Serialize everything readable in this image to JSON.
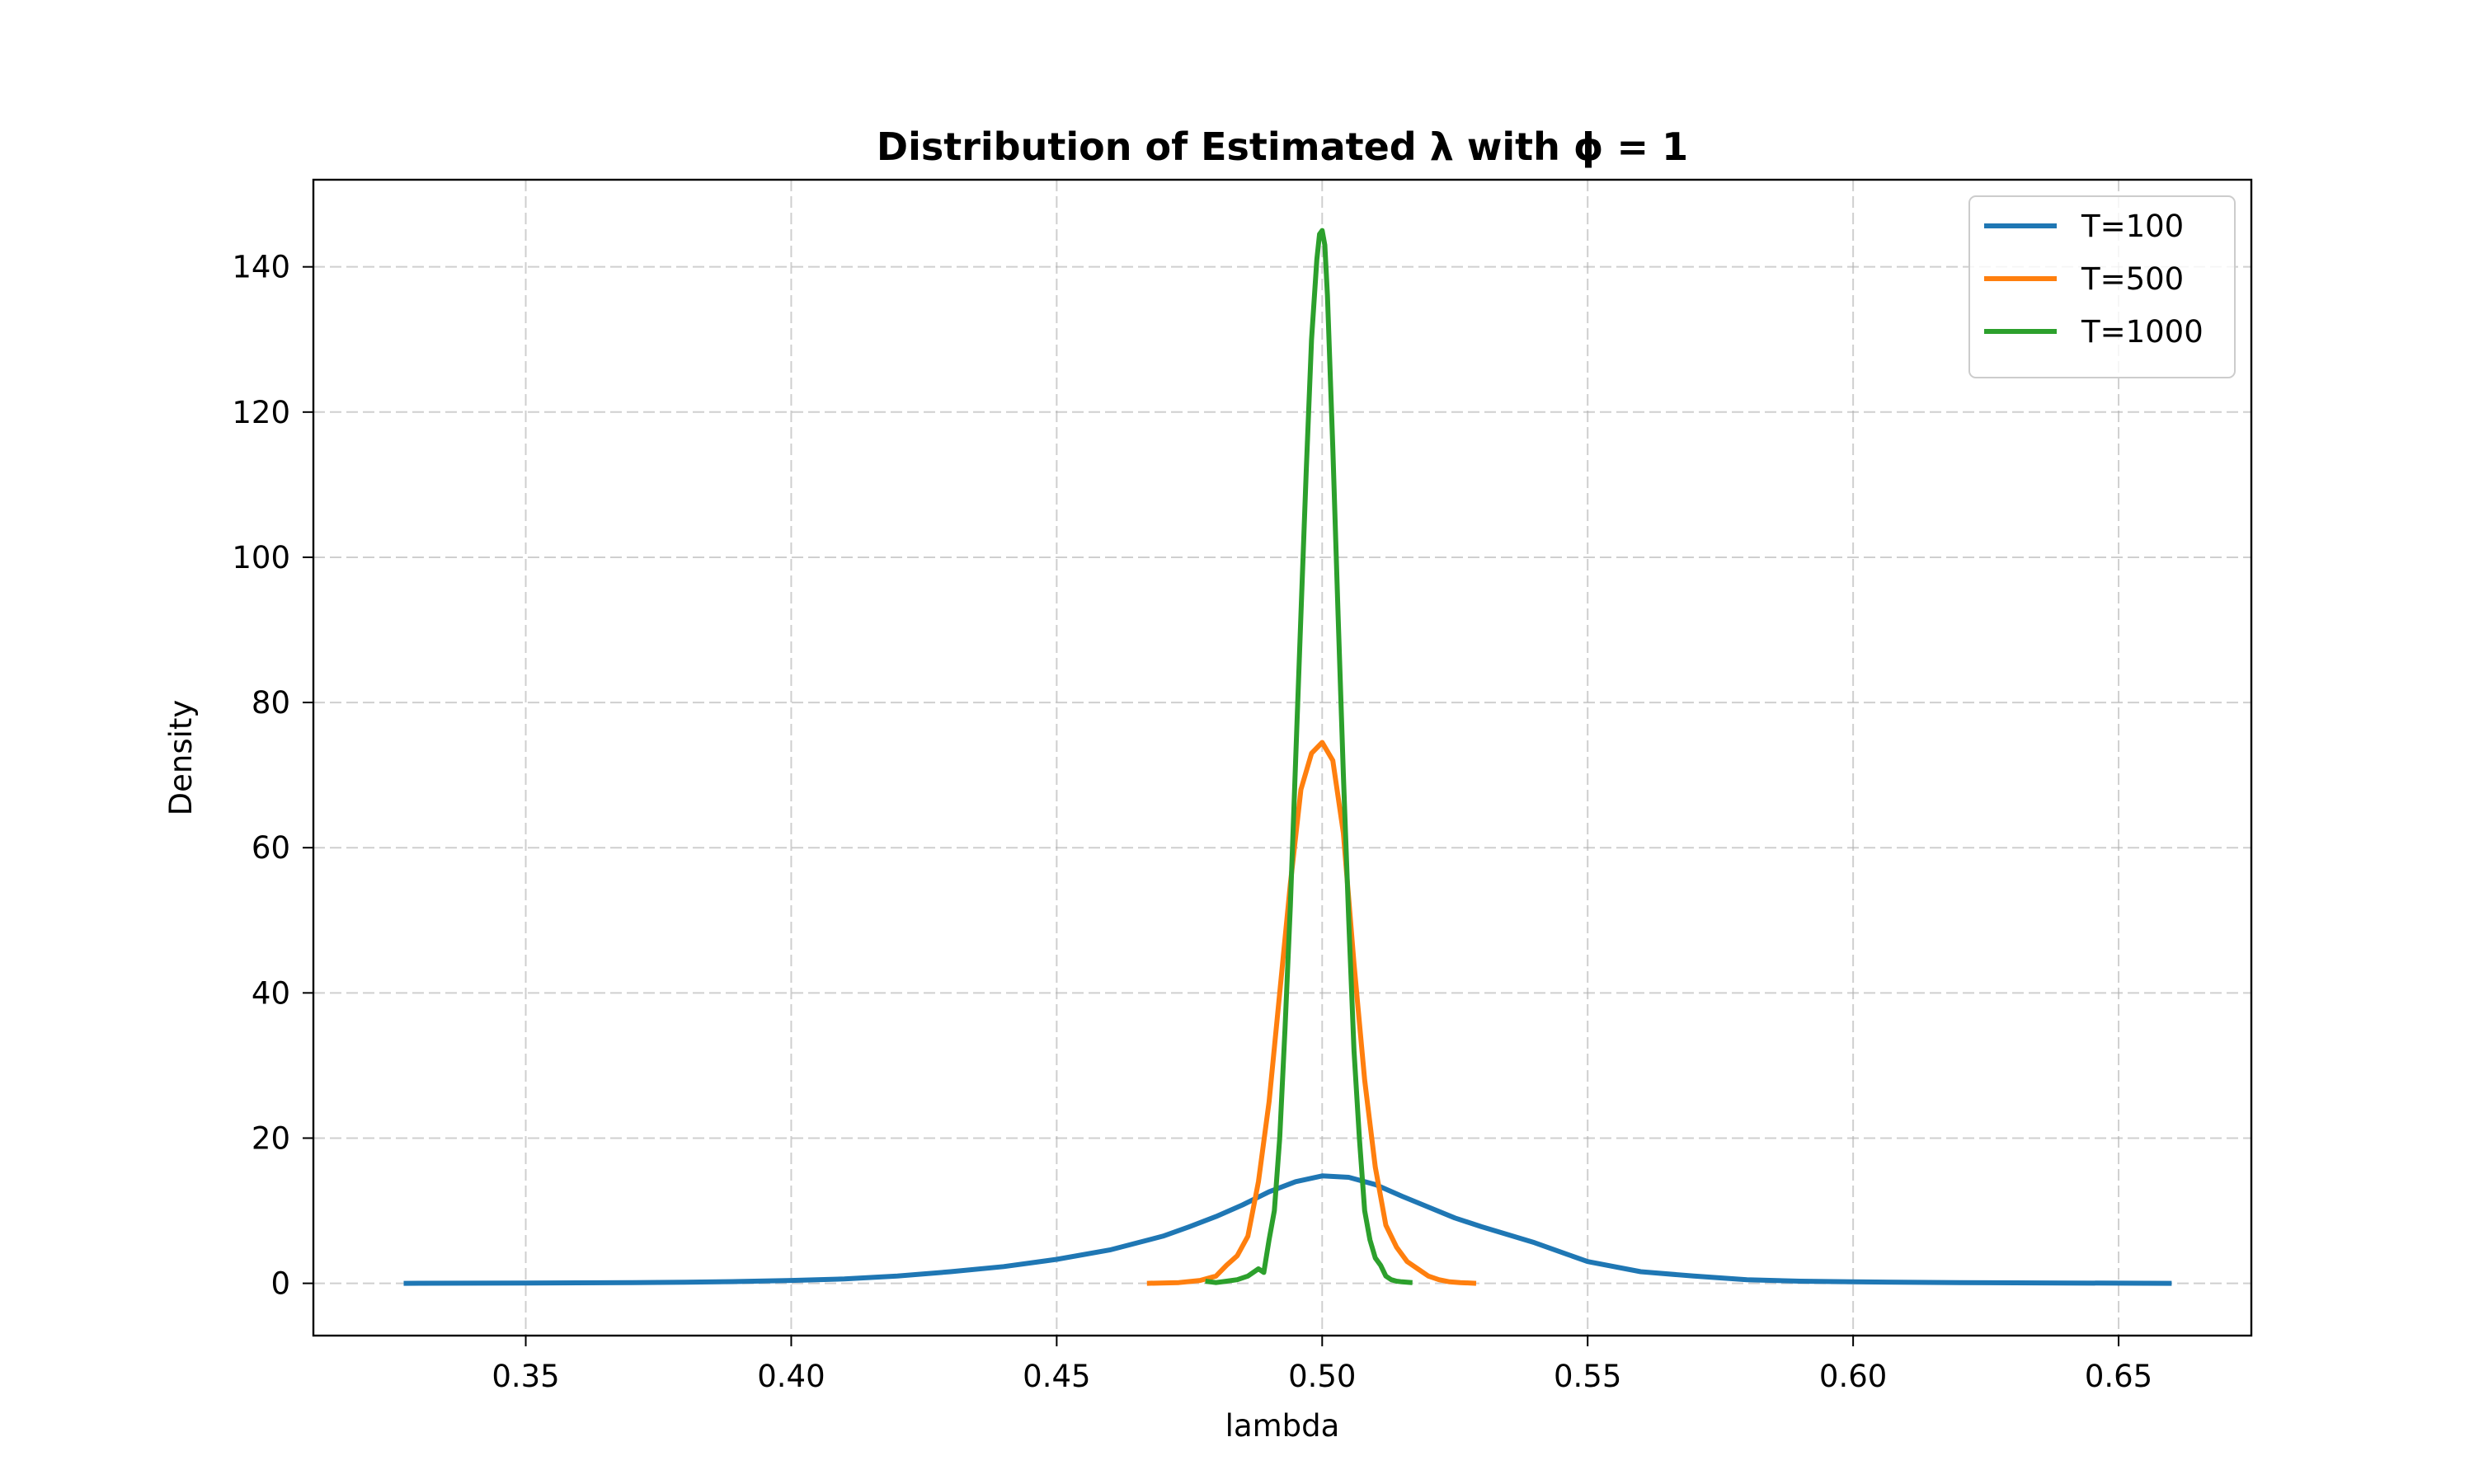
{
  "chart_data": {
    "type": "line",
    "title": "Distribution of Estimated λ with ϕ = 1",
    "xlabel": "lambda",
    "ylabel": "Density",
    "xlim": [
      0.31,
      0.675
    ],
    "ylim": [
      -7.2,
      152
    ],
    "xticks": [
      0.35,
      0.4,
      0.45,
      0.5,
      0.55,
      0.6,
      0.65
    ],
    "xtick_labels": [
      "0.35",
      "0.40",
      "0.45",
      "0.50",
      "0.55",
      "0.60",
      "0.65"
    ],
    "yticks": [
      0,
      20,
      40,
      60,
      80,
      100,
      120,
      140
    ],
    "ytick_labels": [
      "0",
      "20",
      "40",
      "60",
      "80",
      "100",
      "120",
      "140"
    ],
    "grid": true,
    "legend_position": "top-right",
    "series": [
      {
        "name": "T=100",
        "color": "#1f77b4",
        "x": [
          0.327,
          0.35,
          0.37,
          0.38,
          0.39,
          0.4,
          0.41,
          0.42,
          0.43,
          0.44,
          0.45,
          0.46,
          0.47,
          0.475,
          0.48,
          0.485,
          0.49,
          0.495,
          0.5,
          0.505,
          0.51,
          0.515,
          0.52,
          0.525,
          0.53,
          0.54,
          0.55,
          0.56,
          0.57,
          0.58,
          0.59,
          0.6,
          0.62,
          0.64,
          0.66
        ],
        "y": [
          0.0,
          0.05,
          0.1,
          0.15,
          0.25,
          0.4,
          0.6,
          1.0,
          1.6,
          2.3,
          3.3,
          4.6,
          6.5,
          7.8,
          9.2,
          10.8,
          12.6,
          14.0,
          14.8,
          14.6,
          13.6,
          12.0,
          10.5,
          9.0,
          7.8,
          5.6,
          3.0,
          1.6,
          1.0,
          0.5,
          0.3,
          0.2,
          0.1,
          0.05,
          0.0
        ]
      },
      {
        "name": "T=500",
        "color": "#ff7f0e",
        "x": [
          0.467,
          0.473,
          0.477,
          0.48,
          0.482,
          0.484,
          0.486,
          0.488,
          0.49,
          0.492,
          0.494,
          0.496,
          0.498,
          0.5,
          0.502,
          0.504,
          0.506,
          0.508,
          0.51,
          0.512,
          0.514,
          0.516,
          0.518,
          0.52,
          0.522,
          0.524,
          0.526,
          0.529
        ],
        "y": [
          0.0,
          0.1,
          0.4,
          1.0,
          2.5,
          3.8,
          6.5,
          14.0,
          25.0,
          40.0,
          55.0,
          68.0,
          73.0,
          74.5,
          72.0,
          62.0,
          44.0,
          28.0,
          16.0,
          8.0,
          5.0,
          3.0,
          2.0,
          1.0,
          0.5,
          0.2,
          0.1,
          0.0
        ]
      },
      {
        "name": "T=1000",
        "color": "#2ca02c",
        "x": [
          0.478,
          0.48,
          0.482,
          0.484,
          0.486,
          0.488,
          0.489,
          0.49,
          0.491,
          0.492,
          0.493,
          0.494,
          0.495,
          0.496,
          0.497,
          0.498,
          0.499,
          0.4995,
          0.5,
          0.5005,
          0.501,
          0.502,
          0.503,
          0.504,
          0.505,
          0.506,
          0.507,
          0.508,
          0.509,
          0.51,
          0.511,
          0.512,
          0.513,
          0.514,
          0.515,
          0.517
        ],
        "y": [
          0.3,
          0.1,
          0.3,
          0.5,
          1.0,
          2.0,
          1.5,
          6.0,
          10.0,
          20.0,
          35.0,
          52.0,
          72.0,
          92.0,
          112.0,
          130.0,
          141.0,
          144.5,
          145.0,
          143.0,
          136.0,
          115.0,
          92.0,
          70.0,
          50.0,
          32.0,
          20.0,
          10.0,
          6.0,
          3.5,
          2.5,
          1.0,
          0.5,
          0.3,
          0.2,
          0.1
        ]
      }
    ]
  }
}
